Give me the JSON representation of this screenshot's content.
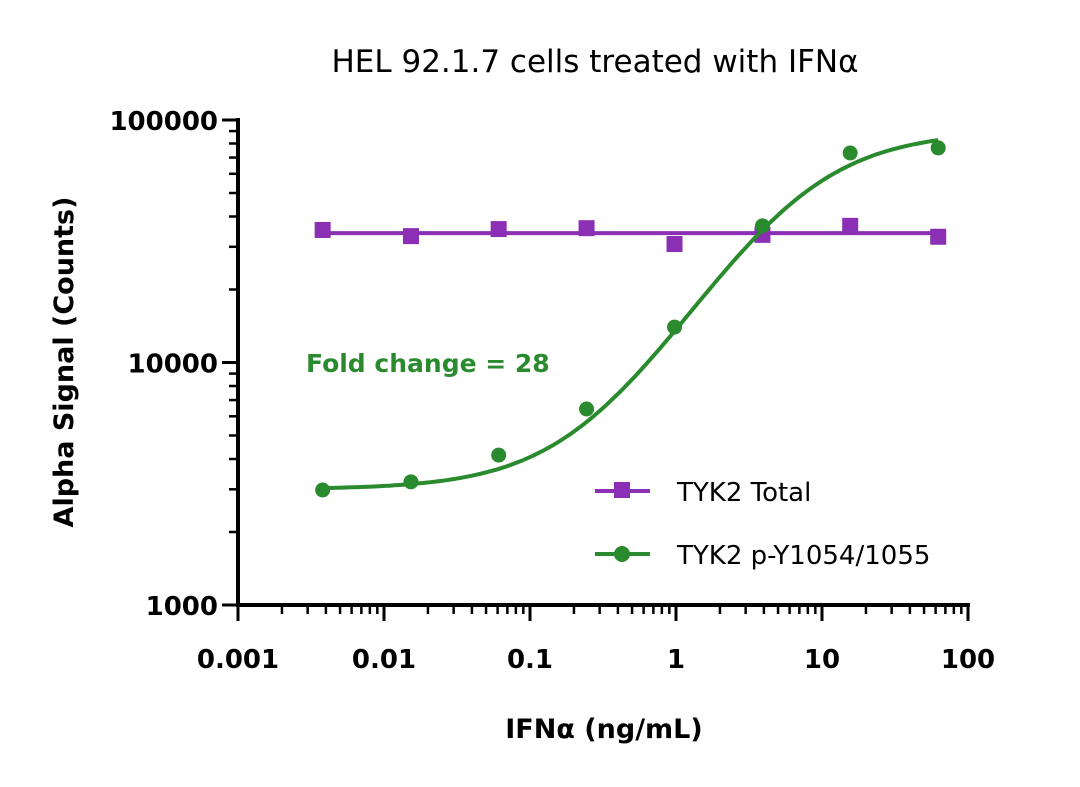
{
  "chart_data": {
    "type": "scatter",
    "title": "HEL 92.1.7 cells treated with IFNα",
    "xlabel": "IFNα (ng/mL)",
    "ylabel": "Alpha Signal (Counts)",
    "x_scale": "log",
    "y_scale": "log",
    "xlim": [
      0.001,
      100
    ],
    "ylim": [
      1000,
      100000
    ],
    "x_ticks": [
      "0.001",
      "0.01",
      "0.1",
      "1",
      "10",
      "100"
    ],
    "y_ticks": [
      "1000",
      "10000",
      "100000"
    ],
    "grid": false,
    "legend_position": "bottom-right",
    "annotation": "Fold change = 28",
    "x": [
      0.0038,
      0.0153,
      0.061,
      0.244,
      0.977,
      3.91,
      15.6,
      62.5
    ],
    "series": [
      {
        "name": "TYK2 Total",
        "marker": "square",
        "color": "#8b2fb5",
        "fit": "horizontal line",
        "values": [
          35200,
          33200,
          35500,
          35800,
          30800,
          33600,
          36600,
          33000
        ]
      },
      {
        "name": "TYK2 p-Y1054/1055",
        "marker": "circle",
        "color": "#2a8a2e",
        "fit": "sigmoidal",
        "values": [
          2980,
          3220,
          4150,
          6430,
          14000,
          36600,
          73100,
          76700
        ]
      }
    ]
  }
}
